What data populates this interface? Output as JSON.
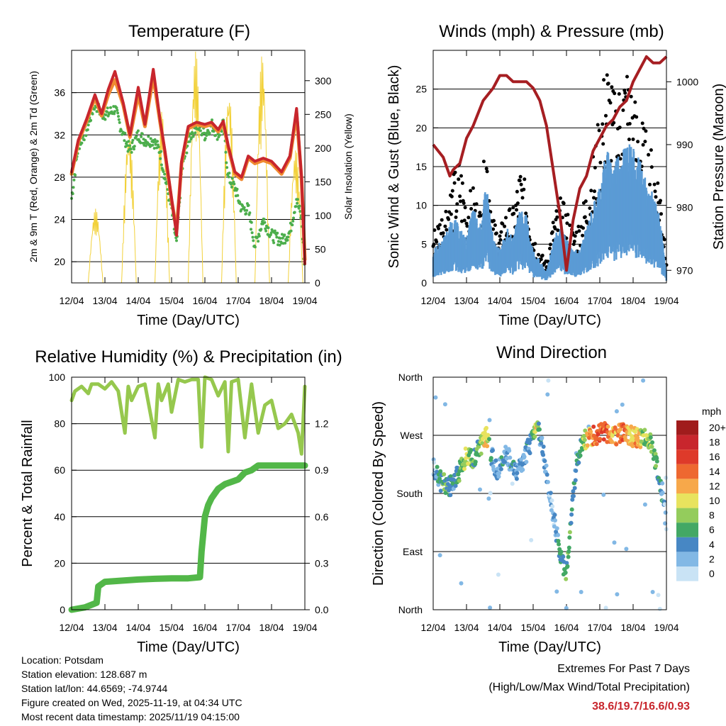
{
  "chart_data": [
    {
      "type": "line",
      "title": "Temperature (F)",
      "xlabel": "Time (Day/UTC)",
      "ylabel": "2m & 9m T (Red, Orange) & 2m Td (Green)",
      "ylabel_right": "Solar Insolation (Yellow)",
      "x_ticks": [
        "12/04",
        "13/04",
        "14/04",
        "15/04",
        "16/04",
        "17/04",
        "18/04",
        "19/04"
      ],
      "xlim": [
        0,
        7
      ],
      "ylim": [
        18,
        40
      ],
      "y_ticks": [
        20,
        24,
        28,
        32,
        36
      ],
      "y2lim": [
        0,
        345
      ],
      "y2_ticks": [
        0,
        50,
        100,
        150,
        200,
        250,
        300
      ],
      "series": [
        {
          "name": "2m T",
          "color": "#c8262d",
          "x": [
            0,
            0.2,
            0.45,
            0.7,
            0.9,
            1.1,
            1.3,
            1.55,
            1.75,
            2.0,
            2.2,
            2.45,
            2.65,
            2.8,
            3.0,
            3.15,
            3.3,
            3.5,
            3.75,
            4.0,
            4.2,
            4.4,
            4.55,
            4.7,
            4.9,
            5.1,
            5.3,
            5.5,
            5.75,
            6.0,
            6.3,
            6.55,
            6.75,
            6.9,
            7.0
          ],
          "values": [
            28.5,
            31.5,
            33.5,
            35.8,
            34.0,
            36.3,
            38.0,
            35.0,
            32.0,
            36.5,
            33.0,
            38.2,
            33.5,
            30.5,
            26.0,
            22.5,
            29.5,
            32.8,
            33.2,
            33.0,
            33.2,
            32.5,
            33.3,
            31.0,
            28.5,
            28.0,
            30.0,
            29.5,
            29.8,
            29.5,
            28.5,
            30.0,
            34.5,
            28.0,
            19.8
          ]
        },
        {
          "name": "9m T",
          "color": "#f08a30",
          "x": [
            0,
            0.2,
            0.45,
            0.7,
            0.9,
            1.1,
            1.3,
            1.55,
            1.75,
            2.0,
            2.2,
            2.45,
            2.65,
            2.8,
            3.0,
            3.15,
            3.3,
            3.5,
            3.75,
            4.0,
            4.2,
            4.4,
            4.55,
            4.7,
            4.9,
            5.1,
            5.3,
            5.5,
            5.75,
            6.0,
            6.3,
            6.55,
            6.75,
            6.9,
            7.0
          ],
          "values": [
            28.3,
            31.3,
            33.3,
            35.5,
            33.8,
            35.8,
            37.2,
            34.8,
            31.8,
            35.8,
            32.8,
            37.5,
            33.3,
            30.3,
            25.8,
            23.0,
            29.3,
            32.6,
            33.0,
            32.8,
            33.0,
            32.3,
            33.1,
            30.8,
            28.3,
            27.8,
            29.8,
            29.3,
            29.6,
            29.3,
            28.3,
            29.8,
            34.0,
            27.8,
            20.2
          ]
        },
        {
          "name": "2m Td",
          "color": "#4cae4c",
          "x": [
            0,
            0.2,
            0.45,
            0.7,
            0.9,
            1.1,
            1.3,
            1.55,
            1.75,
            2.0,
            2.2,
            2.45,
            2.65,
            2.8,
            3.0,
            3.15,
            3.3,
            3.5,
            3.75,
            4.0,
            4.2,
            4.4,
            4.55,
            4.7,
            4.9,
            5.1,
            5.3,
            5.5,
            5.75,
            6.0,
            6.3,
            6.55,
            6.75,
            6.9,
            7.0
          ],
          "values": [
            26.0,
            31.0,
            32.5,
            35.0,
            34.0,
            34.0,
            34.5,
            32.0,
            30.5,
            32.0,
            31.5,
            31.5,
            30.5,
            28.0,
            25.0,
            21.5,
            28.5,
            31.5,
            33.0,
            32.0,
            33.0,
            32.0,
            33.0,
            28.0,
            27.0,
            25.0,
            25.0,
            21.5,
            24.0,
            22.5,
            22.0,
            22.8,
            26.0,
            24.0,
            18.8
          ]
        },
        {
          "name": "Solar Insolation",
          "axis": "right",
          "color": "#f2d13a",
          "day_peaks": [
            110,
            230,
            260,
            345,
            290,
            340,
            200,
            330
          ]
        }
      ]
    },
    {
      "type": "scatter",
      "title": "Winds (mph) & Pressure (mb)",
      "xlabel": "Time (Day/UTC)",
      "ylabel": "Sonic Wind & Gust (Blue, Black)",
      "ylabel_right": "Station Pressure (Maroon)",
      "x_ticks": [
        "12/04",
        "13/04",
        "14/04",
        "15/04",
        "16/04",
        "17/04",
        "18/04",
        "19/04"
      ],
      "xlim": [
        0,
        7
      ],
      "ylim": [
        0,
        30
      ],
      "y_ticks": [
        0,
        5,
        10,
        15,
        20,
        25
      ],
      "y2lim": [
        968,
        1005
      ],
      "y2_ticks": [
        970,
        980,
        990,
        1000
      ],
      "series": [
        {
          "name": "Sonic Wind",
          "color": "#5b9bd5",
          "x": [
            0,
            0.3,
            0.6,
            0.8,
            1.0,
            1.2,
            1.4,
            1.6,
            1.8,
            2.0,
            2.2,
            2.4,
            2.6,
            2.8,
            3.0,
            3.2,
            3.4,
            3.6,
            3.8,
            4.0,
            4.2,
            4.4,
            4.6,
            4.8,
            5.0,
            5.2,
            5.4,
            5.6,
            5.8,
            6.0,
            6.2,
            6.4,
            6.6,
            6.8,
            7.0
          ],
          "values": [
            3,
            4,
            6,
            5,
            4,
            7,
            5,
            9,
            4,
            3,
            5,
            4,
            7,
            6,
            3,
            2,
            1,
            4,
            5,
            4,
            3,
            3,
            5,
            7,
            9,
            12,
            11,
            12,
            13,
            12,
            11,
            9,
            8,
            6,
            1
          ]
        },
        {
          "name": "Gust",
          "color": "#000000",
          "x": [
            0,
            0.3,
            0.6,
            0.8,
            1.0,
            1.2,
            1.4,
            1.6,
            1.8,
            2.0,
            2.2,
            2.4,
            2.6,
            2.8,
            3.0,
            3.2,
            3.4,
            3.6,
            3.8,
            4.0,
            4.2,
            4.4,
            4.6,
            4.8,
            5.0,
            5.2,
            5.4,
            5.6,
            5.8,
            6.0,
            6.2,
            6.4,
            6.6,
            6.8,
            7.0
          ],
          "values": [
            5,
            7,
            10,
            12,
            8,
            9,
            7,
            14,
            6,
            5,
            7,
            7,
            11,
            9,
            5,
            3,
            2,
            6,
            8,
            7,
            5,
            6,
            9,
            12,
            16,
            22,
            18,
            19,
            21,
            18,
            16,
            14,
            12,
            10,
            3
          ]
        },
        {
          "name": "Station Pressure",
          "axis": "right",
          "color": "#a61e22",
          "x": [
            0,
            0.3,
            0.5,
            0.6,
            0.8,
            1.0,
            1.2,
            1.5,
            1.8,
            2.0,
            2.2,
            2.4,
            2.6,
            2.8,
            3.0,
            3.2,
            3.4,
            3.6,
            3.8,
            4.0,
            4.2,
            4.4,
            4.6,
            4.8,
            5.0,
            5.2,
            5.4,
            5.6,
            5.8,
            6.0,
            6.2,
            6.4,
            6.6,
            6.8,
            7.0
          ],
          "values": [
            990,
            988,
            985,
            986,
            987,
            991,
            993,
            997,
            999,
            1001,
            1001,
            1000,
            1000,
            1000,
            999,
            997,
            993,
            986,
            979,
            970,
            978,
            983,
            985,
            989,
            991,
            993,
            994,
            996,
            997,
            1000,
            1002,
            1004,
            1003,
            1003,
            1004
          ]
        }
      ]
    },
    {
      "type": "line",
      "title": "Relative Humidity (%) & Precipitation (in)",
      "xlabel": "Time (Day/UTC)",
      "ylabel": "Percent & Total Rainfall",
      "x_ticks": [
        "12/04",
        "13/04",
        "14/04",
        "15/04",
        "16/04",
        "17/04",
        "18/04",
        "19/04"
      ],
      "xlim": [
        0,
        7
      ],
      "ylim": [
        0,
        100
      ],
      "y_ticks": [
        0,
        20,
        40,
        60,
        80,
        100
      ],
      "y2_ticks": [
        "0.0",
        "0.3",
        "0.6",
        "0.9",
        "1.2"
      ],
      "series": [
        {
          "name": "Relative Humidity",
          "color": "#96c84e",
          "x": [
            0,
            0.1,
            0.3,
            0.5,
            0.6,
            0.8,
            1.0,
            1.2,
            1.4,
            1.6,
            1.7,
            1.8,
            2.0,
            2.2,
            2.5,
            2.6,
            2.7,
            2.9,
            3.0,
            3.2,
            3.4,
            3.6,
            3.8,
            3.9,
            4.0,
            4.2,
            4.4,
            4.6,
            4.7,
            4.8,
            5.0,
            5.2,
            5.4,
            5.6,
            5.8,
            6.0,
            6.2,
            6.4,
            6.6,
            6.8,
            6.9,
            7.0
          ],
          "values": [
            90,
            94,
            96,
            93,
            97,
            97,
            95,
            98,
            94,
            76,
            96,
            90,
            96,
            97,
            74,
            97,
            90,
            97,
            85,
            99,
            98,
            99,
            99,
            70,
            100,
            99,
            92,
            98,
            68,
            98,
            99,
            74,
            97,
            76,
            88,
            90,
            78,
            80,
            84,
            76,
            67,
            96
          ]
        },
        {
          "name": "Total Precipitation",
          "color": "#52b748",
          "x": [
            0,
            0.4,
            0.75,
            0.8,
            1.0,
            1.5,
            2.0,
            2.5,
            3.0,
            3.5,
            3.85,
            3.9,
            4.0,
            4.1,
            4.2,
            4.4,
            4.6,
            4.8,
            5.0,
            5.2,
            5.4,
            5.6,
            6.0,
            6.5,
            7.0
          ],
          "values": [
            0,
            1,
            3,
            10,
            12,
            12.5,
            13,
            13.3,
            13.5,
            13.5,
            14,
            25,
            40,
            45,
            48,
            52,
            54,
            55,
            56,
            59,
            60,
            62,
            62,
            62,
            62
          ]
        }
      ]
    },
    {
      "type": "scatter",
      "title": "Wind Direction",
      "xlabel": "Time (Day/UTC)",
      "ylabel": "Direction (Colored By Speed)",
      "x_ticks": [
        "12/04",
        "13/04",
        "14/04",
        "15/04",
        "16/04",
        "17/04",
        "18/04",
        "19/04"
      ],
      "xlim": [
        0,
        7
      ],
      "ylim": [
        0,
        360
      ],
      "y_ticks": [
        "North",
        "East",
        "South",
        "West",
        "North"
      ],
      "series": [
        {
          "name": "Direction",
          "x": [
            0,
            0.1,
            0.2,
            0.35,
            0.5,
            0.6,
            0.75,
            0.9,
            1.0,
            1.2,
            1.35,
            1.5,
            1.6,
            1.8,
            1.9,
            2.0,
            2.2,
            2.35,
            2.5,
            2.7,
            2.85,
            3.0,
            3.1,
            3.2,
            3.35,
            3.5,
            3.6,
            3.7,
            3.8,
            4.0,
            4.3,
            4.5,
            4.7,
            4.9,
            5.1,
            5.3,
            5.5,
            5.7,
            5.9,
            6.1,
            6.3,
            6.5,
            6.7,
            6.9,
            7.0
          ],
          "values": [
            220,
            215,
            200,
            195,
            190,
            200,
            210,
            225,
            240,
            230,
            250,
            260,
            270,
            230,
            215,
            220,
            240,
            225,
            215,
            225,
            250,
            270,
            290,
            270,
            230,
            180,
            150,
            120,
            80,
            60,
            230,
            260,
            270,
            270,
            275,
            270,
            270,
            275,
            270,
            265,
            265,
            260,
            225,
            175,
            130
          ],
          "speeds": [
            2,
            3,
            5,
            6,
            5,
            4,
            6,
            8,
            9,
            6,
            5,
            10,
            11,
            3,
            3,
            4,
            3,
            4,
            3,
            3,
            4,
            6,
            11,
            4,
            3,
            2,
            2,
            3,
            5,
            6,
            4,
            8,
            12,
            14,
            15,
            13,
            12,
            14,
            11,
            12,
            8,
            8,
            6,
            4,
            1
          ]
        }
      ],
      "legend": {
        "unit": "mph",
        "position": "right",
        "labels": [
          "20+",
          "18",
          "16",
          "14",
          "12",
          "10",
          "8",
          "6",
          "4",
          "2",
          "0"
        ],
        "colors": [
          "#a01c1c",
          "#c8262d",
          "#de3a2a",
          "#ee6830",
          "#f7a84a",
          "#e8e35e",
          "#94cc5c",
          "#43a865",
          "#4787c4",
          "#82b8e5",
          "#c9e3f5"
        ]
      }
    }
  ],
  "info": {
    "location": "Location: Potsdam",
    "elevation": "Station elevation: 128.687 m",
    "latlon": "Station lat/lon: 44.6569; -74.9744",
    "created": "Figure created on Wed, 2025-11-19, at 04:34 UTC",
    "recent": "Most recent data timestamp: 2025/11/19 04:15:00"
  },
  "extremes": {
    "title": "Extremes For Past 7 Days",
    "subtitle": "(High/Low/Max Wind/Total Precipitation)",
    "values": "38.6/19.7/16.6/0.93"
  }
}
